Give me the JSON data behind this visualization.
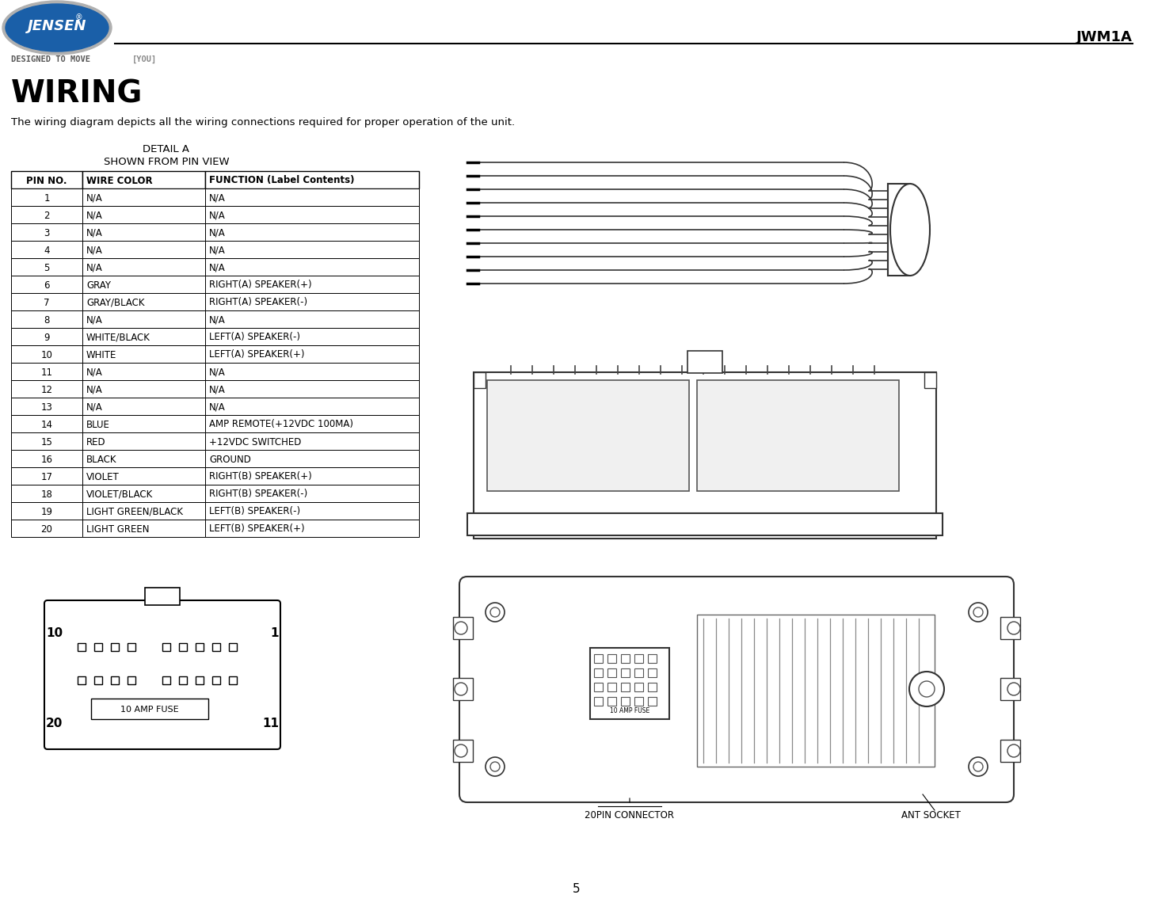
{
  "title": "WIRING",
  "subtitle": "The wiring diagram depicts all the wiring connections required for proper operation of the unit.",
  "page_number": "5",
  "model": "JWM1A",
  "detail_title1": "DETAIL A",
  "detail_title2": "SHOWN FROM PIN VIEW",
  "table_header": [
    "PIN NO.",
    "WIRE COLOR",
    "FUNCTION (Label Contents)"
  ],
  "table_rows": [
    [
      "1",
      "N/A",
      "N/A"
    ],
    [
      "2",
      "N/A",
      "N/A"
    ],
    [
      "3",
      "N/A",
      "N/A"
    ],
    [
      "4",
      "N/A",
      "N/A"
    ],
    [
      "5",
      "N/A",
      "N/A"
    ],
    [
      "6",
      "GRAY",
      "RIGHT(A) SPEAKER(+)"
    ],
    [
      "7",
      "GRAY/BLACK",
      "RIGHT(A) SPEAKER(-)"
    ],
    [
      "8",
      "N/A",
      "N/A"
    ],
    [
      "9",
      "WHITE/BLACK",
      "LEFT(A) SPEAKER(-)"
    ],
    [
      "10",
      "WHITE",
      "LEFT(A) SPEAKER(+)"
    ],
    [
      "11",
      "N/A",
      "N/A"
    ],
    [
      "12",
      "N/A",
      "N/A"
    ],
    [
      "13",
      "N/A",
      "N/A"
    ],
    [
      "14",
      "BLUE",
      "AMP REMOTE(+12VDC 100MA)"
    ],
    [
      "15",
      "RED",
      "+12VDC SWITCHED"
    ],
    [
      "16",
      "BLACK",
      "GROUND"
    ],
    [
      "17",
      "VIOLET",
      "RIGHT(B) SPEAKER(+)"
    ],
    [
      "18",
      "VIOLET/BLACK",
      "RIGHT(B) SPEAKER(-)"
    ],
    [
      "19",
      "LIGHT GREEN/BLACK",
      "LEFT(B) SPEAKER(-)"
    ],
    [
      "20",
      "LIGHT GREEN",
      "LEFT(B) SPEAKER(+)"
    ]
  ],
  "bg_color": "#ffffff",
  "text_color": "#000000",
  "designed_text1": "DESIGNED TO MOVE ",
  "designed_text2": "[YOU]"
}
